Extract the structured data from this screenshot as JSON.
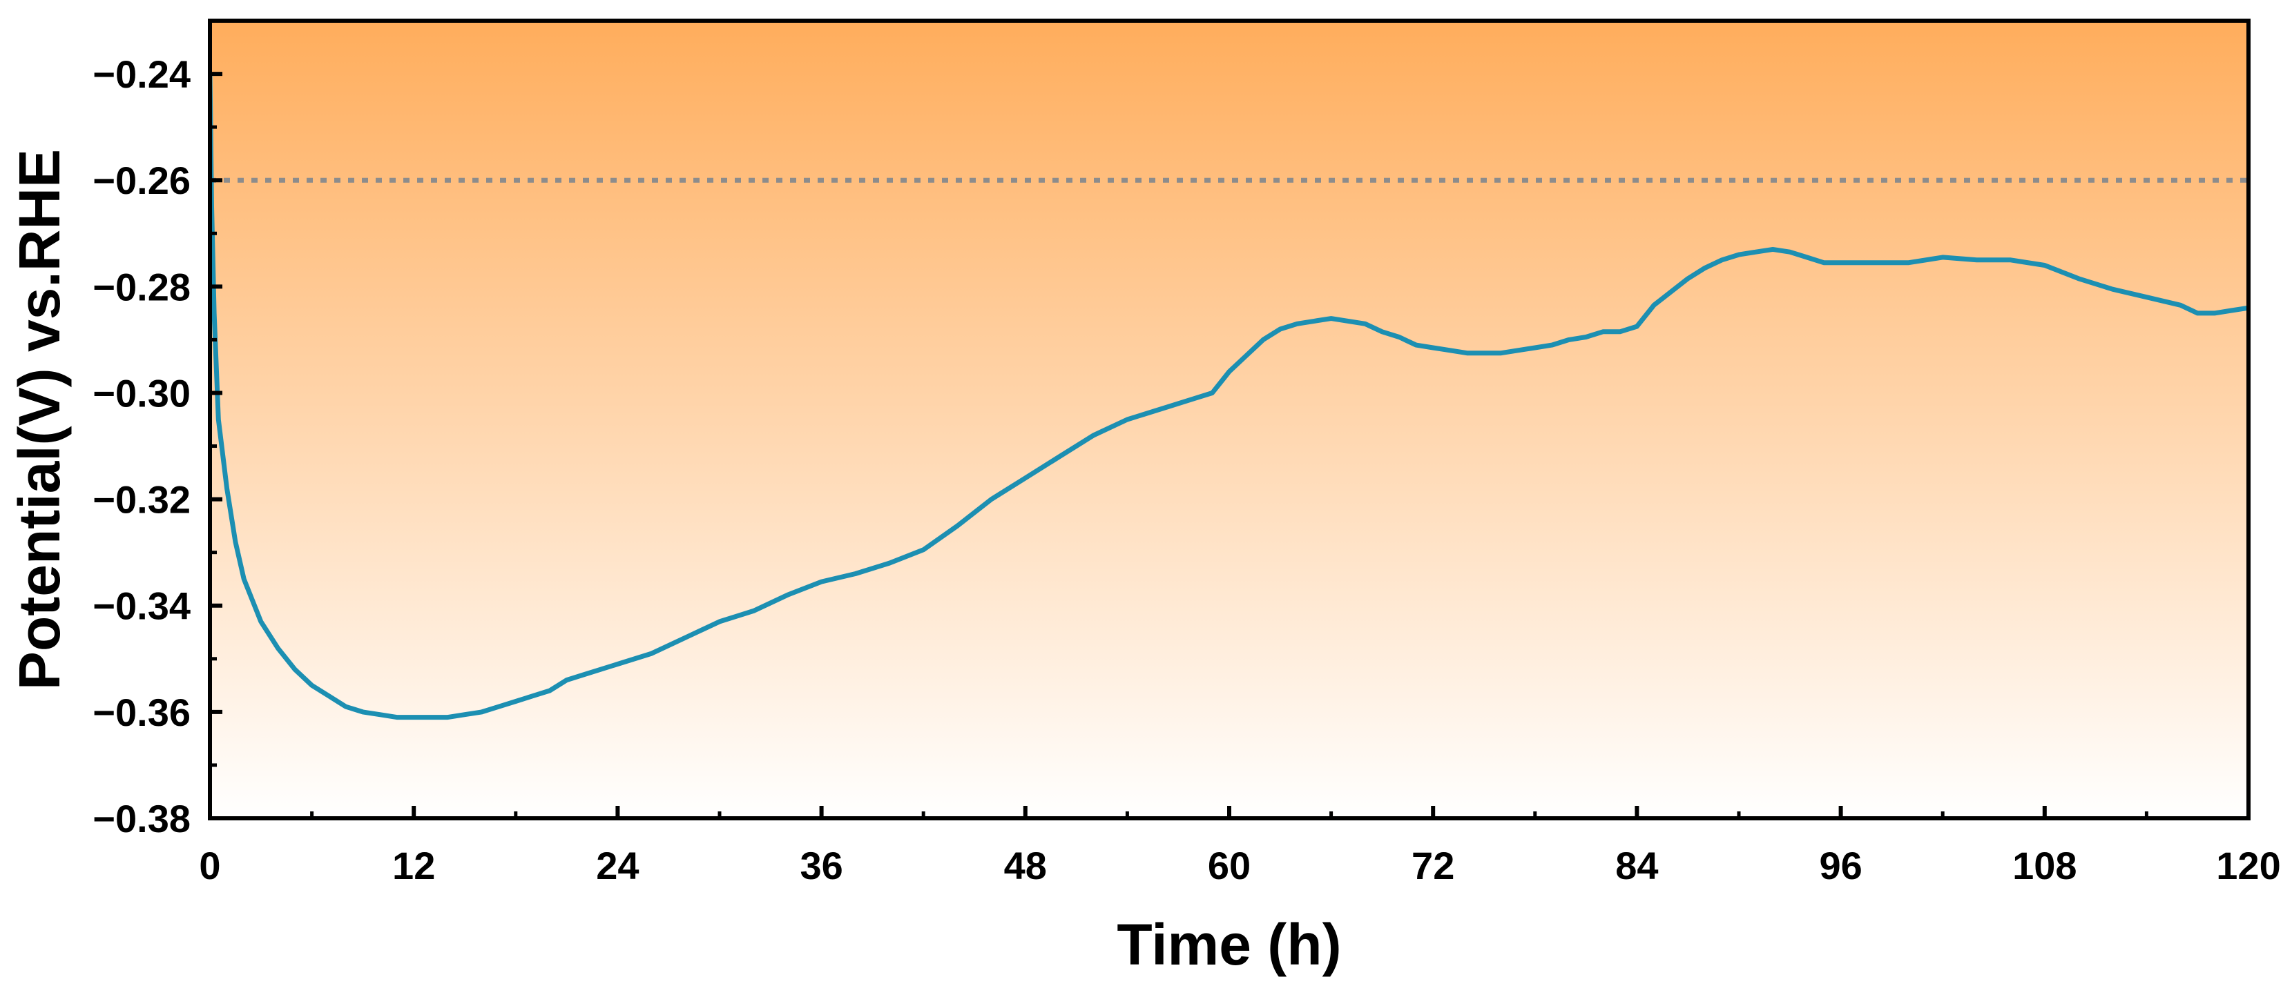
{
  "chart_data": {
    "type": "line",
    "title": "",
    "xlabel": "Time (h)",
    "ylabel": "Potential(V) vs.RHE",
    "xlim": [
      0,
      120
    ],
    "ylim": [
      -0.38,
      -0.23
    ],
    "xticks": [
      0,
      12,
      24,
      36,
      48,
      60,
      72,
      84,
      96,
      108,
      120
    ],
    "xtick_labels": [
      "0",
      "12",
      "24",
      "36",
      "48",
      "60",
      "72",
      "84",
      "96",
      "108",
      "120"
    ],
    "yticks": [
      -0.38,
      -0.36,
      -0.34,
      -0.32,
      -0.3,
      -0.28,
      -0.26,
      -0.24
    ],
    "ytick_labels": [
      "−0.38",
      "−0.36",
      "−0.34",
      "−0.32",
      "−0.30",
      "−0.28",
      "−0.26",
      "−0.24"
    ],
    "grid": false,
    "legend": "none",
    "reference_line": {
      "y": -0.26,
      "style": "dotted",
      "color": "#8c8c8c"
    },
    "background_gradient": {
      "top": "#ffad5c",
      "bottom": "#ffffff"
    },
    "series": [
      {
        "color": "#1c8fb2",
        "x": [
          0,
          0.1,
          0.25,
          0.5,
          1,
          1.5,
          2,
          3,
          4,
          5,
          6,
          7,
          8,
          9,
          10,
          11,
          12,
          13,
          14,
          15,
          16,
          17,
          18,
          19,
          20,
          21,
          22,
          24,
          26,
          28,
          30,
          32,
          34,
          36,
          38,
          40,
          42,
          44,
          46,
          48,
          50,
          52,
          54,
          56,
          58,
          59,
          60,
          61,
          62,
          63,
          64,
          65,
          66,
          67,
          68,
          69,
          70,
          71,
          72,
          73,
          74,
          75,
          76,
          77,
          78,
          79,
          80,
          81,
          82,
          83,
          84,
          85,
          86,
          87,
          88,
          89,
          90,
          91,
          92,
          93,
          94,
          95,
          96,
          98,
          100,
          102,
          104,
          106,
          108,
          110,
          112,
          114,
          116,
          117,
          118,
          119,
          120
        ],
        "values": [
          -0.24,
          -0.265,
          -0.285,
          -0.305,
          -0.318,
          -0.328,
          -0.335,
          -0.343,
          -0.348,
          -0.352,
          -0.355,
          -0.357,
          -0.359,
          -0.36,
          -0.3605,
          -0.361,
          -0.361,
          -0.361,
          -0.361,
          -0.3605,
          -0.36,
          -0.359,
          -0.358,
          -0.357,
          -0.356,
          -0.354,
          -0.353,
          -0.351,
          -0.349,
          -0.346,
          -0.343,
          -0.341,
          -0.338,
          -0.3355,
          -0.334,
          -0.332,
          -0.3295,
          -0.325,
          -0.32,
          -0.316,
          -0.312,
          -0.308,
          -0.305,
          -0.303,
          -0.301,
          -0.3,
          -0.296,
          -0.293,
          -0.29,
          -0.288,
          -0.287,
          -0.2865,
          -0.286,
          -0.2865,
          -0.287,
          -0.2885,
          -0.2895,
          -0.291,
          -0.2915,
          -0.292,
          -0.2925,
          -0.2925,
          -0.2925,
          -0.292,
          -0.2915,
          -0.291,
          -0.29,
          -0.2895,
          -0.2885,
          -0.2885,
          -0.2875,
          -0.2835,
          -0.281,
          -0.2785,
          -0.2765,
          -0.275,
          -0.274,
          -0.2735,
          -0.273,
          -0.2735,
          -0.2745,
          -0.2755,
          -0.2755,
          -0.2755,
          -0.2755,
          -0.2745,
          -0.275,
          -0.275,
          -0.276,
          -0.2785,
          -0.2805,
          -0.282,
          -0.2835,
          -0.285,
          -0.285,
          -0.2845,
          -0.284
        ]
      }
    ]
  }
}
